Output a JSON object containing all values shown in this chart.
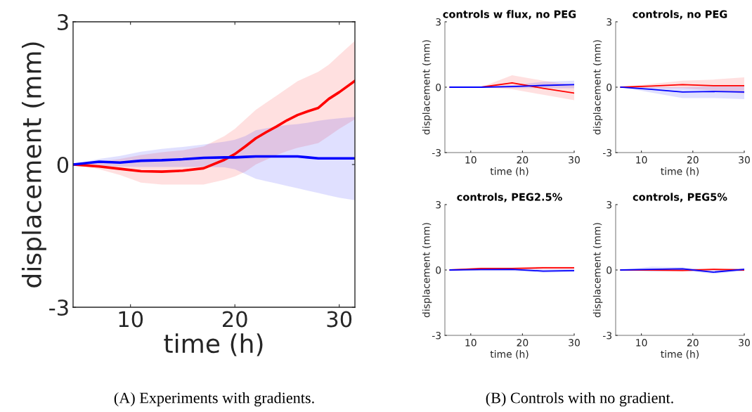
{
  "chart_data": [
    {
      "type": "line",
      "xlabel": "time (h)",
      "ylabel": "displacement (mm)",
      "xlim": [
        4.5,
        31.5
      ],
      "ylim": [
        -3,
        3
      ],
      "xticks": [
        10,
        20,
        30
      ],
      "yticks": [
        -3,
        0,
        3
      ],
      "x": [
        4.5,
        7,
        9,
        11,
        13,
        15,
        17,
        19,
        20,
        21,
        22,
        23,
        24,
        25,
        26,
        27,
        28,
        29,
        30,
        31.5
      ],
      "series": [
        {
          "color": "#ff0000",
          "values": [
            0,
            -0.04,
            -0.09,
            -0.14,
            -0.15,
            -0.13,
            -0.08,
            0.1,
            0.22,
            0.38,
            0.55,
            0.68,
            0.8,
            0.93,
            1.04,
            1.12,
            1.19,
            1.38,
            1.52,
            1.76
          ],
          "upper": [
            0,
            0.06,
            0.12,
            0.2,
            0.26,
            0.3,
            0.38,
            0.6,
            0.75,
            0.95,
            1.15,
            1.3,
            1.45,
            1.6,
            1.75,
            1.85,
            1.95,
            2.1,
            2.3,
            2.6
          ],
          "lower": [
            0,
            -0.1,
            -0.22,
            -0.38,
            -0.42,
            -0.42,
            -0.42,
            -0.32,
            -0.25,
            -0.15,
            0,
            0.1,
            0.2,
            0.28,
            0.35,
            0.4,
            0.45,
            0.6,
            0.75,
            0.95
          ]
        },
        {
          "color": "#0000ff",
          "values": [
            0,
            0.06,
            0.04,
            0.08,
            0.09,
            0.11,
            0.14,
            0.15,
            0.15,
            0.16,
            0.17,
            0.17,
            0.17,
            0.17,
            0.17,
            0.15,
            0.13,
            0.13,
            0.13,
            0.13
          ],
          "upper": [
            0,
            0.12,
            0.18,
            0.27,
            0.33,
            0.37,
            0.42,
            0.48,
            0.52,
            0.6,
            0.72,
            0.76,
            0.8,
            0.83,
            0.85,
            0.88,
            0.92,
            0.95,
            0.97,
            1.0
          ],
          "lower": [
            0,
            -0.03,
            -0.04,
            -0.05,
            -0.05,
            -0.05,
            -0.05,
            -0.06,
            -0.1,
            -0.2,
            -0.3,
            -0.35,
            -0.4,
            -0.45,
            -0.5,
            -0.55,
            -0.6,
            -0.65,
            -0.7,
            -0.75
          ]
        }
      ],
      "annotations": [
        "(A) Experiments with gradients."
      ]
    },
    {
      "type": "line",
      "title": "controls w flux, no PEG",
      "xlabel": "time (h)",
      "ylabel": "displacement (mm)",
      "xlim": [
        5,
        30
      ],
      "ylim": [
        -3,
        3
      ],
      "xticks": [
        10,
        20,
        30
      ],
      "yticks": [
        -3,
        0,
        3
      ],
      "x": [
        6,
        12,
        18,
        24,
        30
      ],
      "series": [
        {
          "color": "#ff0000",
          "values": [
            0,
            0,
            0.2,
            -0.05,
            -0.27
          ],
          "upper": [
            0,
            0,
            0.55,
            0.3,
            0.1
          ],
          "lower": [
            0,
            0,
            -0.1,
            -0.35,
            -0.6
          ]
        },
        {
          "color": "#0000ff",
          "values": [
            0,
            0,
            0.03,
            0.08,
            0.12
          ],
          "upper": [
            0,
            0,
            0.1,
            0.25,
            0.3
          ],
          "lower": [
            0,
            0,
            -0.05,
            -0.05,
            -0.05
          ]
        }
      ],
      "annotations": [
        "(B) Controls with no gradient."
      ]
    },
    {
      "type": "line",
      "title": "controls, no PEG",
      "xlabel": "time (h)",
      "ylabel": "displacement (mm)",
      "xlim": [
        5,
        30
      ],
      "ylim": [
        -3,
        3
      ],
      "xticks": [
        10,
        20,
        30
      ],
      "yticks": [
        -3,
        0,
        3
      ],
      "x": [
        6,
        12,
        18,
        24,
        30
      ],
      "series": [
        {
          "color": "#ff0000",
          "values": [
            0,
            0.05,
            0.12,
            0.07,
            0.07
          ],
          "upper": [
            0,
            0.15,
            0.3,
            0.35,
            0.45
          ],
          "lower": [
            0,
            -0.05,
            -0.05,
            -0.15,
            -0.3
          ]
        },
        {
          "color": "#0000ff",
          "values": [
            0,
            -0.1,
            -0.22,
            -0.2,
            -0.22
          ],
          "upper": [
            0,
            0,
            0,
            0.05,
            0.05
          ],
          "lower": [
            0,
            -0.25,
            -0.5,
            -0.5,
            -0.55
          ]
        }
      ]
    },
    {
      "type": "line",
      "title": "controls, PEG2.5%",
      "xlabel": "time (h)",
      "ylabel": "displacement (mm)",
      "xlim": [
        5,
        30
      ],
      "ylim": [
        -3,
        3
      ],
      "xticks": [
        10,
        20,
        30
      ],
      "yticks": [
        -3,
        0,
        3
      ],
      "x": [
        6,
        12,
        18,
        24,
        30
      ],
      "series": [
        {
          "color": "#ff0000",
          "values": [
            0,
            0.07,
            0.07,
            0.1,
            0.1
          ],
          "upper": [
            0,
            0.12,
            0.12,
            0.16,
            0.15
          ],
          "lower": [
            0,
            0.02,
            0.02,
            0.04,
            0.05
          ]
        },
        {
          "color": "#0000ff",
          "values": [
            0,
            0.02,
            0.03,
            -0.05,
            -0.03
          ],
          "upper": [
            0,
            0.08,
            0.1,
            0.03,
            0.05
          ],
          "lower": [
            0,
            -0.05,
            -0.05,
            -0.12,
            -0.1
          ]
        }
      ]
    },
    {
      "type": "line",
      "title": "controls, PEG5%",
      "xlabel": "time (h)",
      "ylabel": "displacement (mm)",
      "xlim": [
        5,
        30
      ],
      "ylim": [
        -3,
        3
      ],
      "xticks": [
        10,
        20,
        30
      ],
      "yticks": [
        -3,
        0,
        3
      ],
      "x": [
        6,
        12,
        18,
        24,
        30
      ],
      "series": [
        {
          "color": "#ff0000",
          "values": [
            0,
            0,
            -0.02,
            0.03,
            0
          ],
          "upper": [
            0,
            0.05,
            0.05,
            0.08,
            0.05
          ],
          "lower": [
            0,
            -0.05,
            -0.08,
            -0.03,
            -0.05
          ]
        },
        {
          "color": "#0000ff",
          "values": [
            0,
            0.03,
            0.05,
            -0.1,
            0.03
          ],
          "upper": [
            0,
            0.15,
            0.12,
            0,
            0.1
          ],
          "lower": [
            0,
            -0.08,
            -0.03,
            -0.18,
            -0.05
          ]
        }
      ]
    }
  ]
}
